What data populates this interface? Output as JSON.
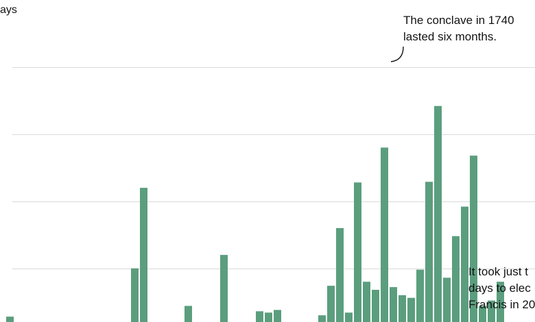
{
  "chart_data": {
    "type": "bar",
    "ylabel": "ays",
    "ylim": [
      0,
      480
    ],
    "grid_values": [
      80,
      180,
      280,
      380
    ],
    "grid": true,
    "bar_color": "#5b9e7e",
    "values": [
      8,
      0,
      0,
      0,
      0,
      0,
      0,
      0,
      0,
      0,
      0,
      0,
      0,
      0,
      80,
      200,
      0,
      0,
      0,
      0,
      24,
      0,
      0,
      0,
      100,
      0,
      0,
      0,
      16,
      14,
      18,
      0,
      0,
      0,
      0,
      10,
      54,
      140,
      14,
      208,
      60,
      48,
      260,
      52,
      40,
      36,
      78,
      209,
      322,
      66,
      128,
      172,
      248,
      24,
      32,
      60
    ],
    "annotations": [
      {
        "name": "annotation-1740",
        "lines": [
          "The conclave in 1740",
          "lasted six months."
        ],
        "bar_index": 42
      },
      {
        "name": "annotation-francis",
        "lines": [
          "It took just t",
          "days to elec",
          "Francis in 20"
        ],
        "bar_index": 55
      }
    ]
  }
}
